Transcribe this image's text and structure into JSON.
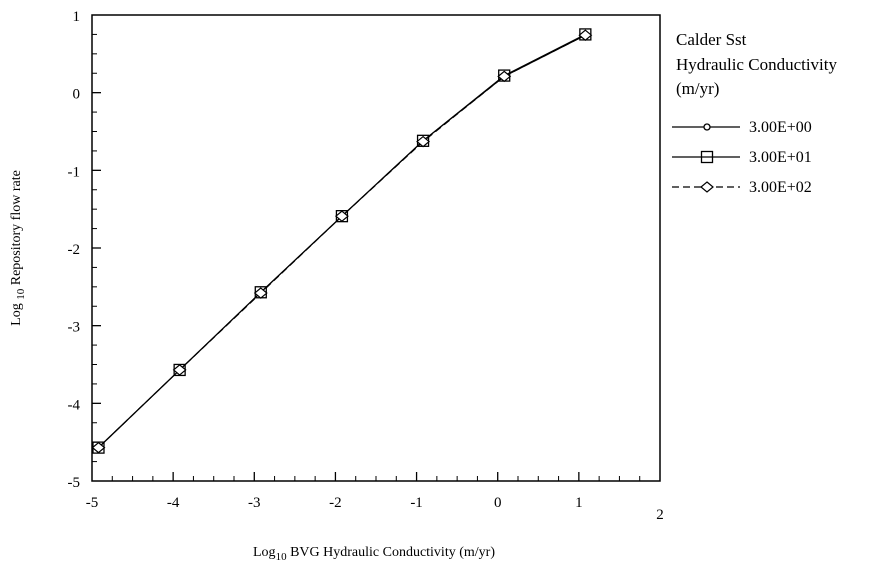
{
  "chart_data": {
    "type": "line",
    "xlabel": {
      "prefix": "Log",
      "sub": "10",
      "rest": " BVG Hydraulic Conductivity (m/yr)"
    },
    "ylabel": {
      "prefix": "Log ",
      "sub": "10",
      "rest": " Repository flow rate"
    },
    "xlim": [
      -5,
      2
    ],
    "ylim": [
      -5,
      1
    ],
    "xticks": [
      -5,
      -4,
      -3,
      -2,
      -1,
      0,
      1,
      2
    ],
    "yticks": [
      1,
      0,
      -1,
      -2,
      -3,
      -4,
      -5
    ],
    "grid": false,
    "legend": {
      "placement": "right",
      "title": [
        "Calder Sst",
        "Hydraulic Conductivity",
        "(m/yr)"
      ]
    },
    "x": [
      -4.92,
      -3.92,
      -2.92,
      -1.92,
      -0.92,
      0.08,
      1.08
    ],
    "series": [
      {
        "name": "3.00E+00",
        "marker": "circle",
        "dash": "solid",
        "values": [
          -4.57,
          -3.57,
          -2.57,
          -1.59,
          -0.62,
          0.21,
          0.74
        ]
      },
      {
        "name": "3.00E+01",
        "marker": "square",
        "dash": "solid",
        "values": [
          -4.57,
          -3.57,
          -2.57,
          -1.59,
          -0.62,
          0.22,
          0.75
        ]
      },
      {
        "name": "3.00E+02",
        "marker": "diamond",
        "dash": "dashed",
        "values": [
          -4.57,
          -3.57,
          -2.58,
          -1.59,
          -0.63,
          0.21,
          0.74
        ]
      }
    ]
  }
}
